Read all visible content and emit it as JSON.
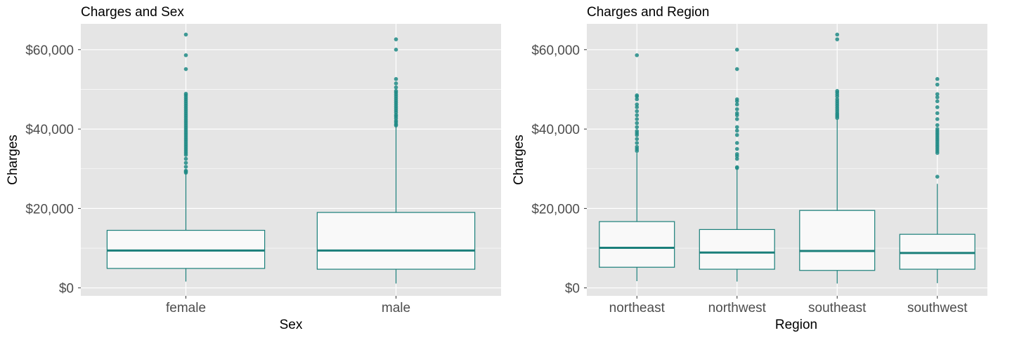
{
  "colors": {
    "panel_bg": "#e5e5e5",
    "grid": "#ffffff",
    "box_stroke": "#1a7f7a",
    "box_fill": "#f9f9f9",
    "outlier": "#1f8a85"
  },
  "chart_data": [
    {
      "type": "box",
      "title": "Charges and Sex",
      "xlabel": "Sex",
      "ylabel": "Charges",
      "ylim": [
        -2000,
        66500
      ],
      "yticks": [
        0,
        20000,
        40000,
        60000
      ],
      "ytick_labels": [
        "$0",
        "$20,000",
        "$40,000",
        "$60,000"
      ],
      "grid": true,
      "categories": [
        "female",
        "male"
      ],
      "boxes": [
        {
          "category": "female",
          "min": 1600,
          "q1": 4900,
          "median": 9400,
          "q3": 14500,
          "max": 28900,
          "outliers": [
            29000,
            29300,
            29500,
            30500,
            31500,
            32500,
            33500,
            34000,
            34500,
            35000,
            35500,
            36000,
            36500,
            37000,
            37500,
            38000,
            38500,
            39000,
            39500,
            40000,
            40500,
            41000,
            41500,
            42000,
            42500,
            43000,
            43500,
            44000,
            44500,
            45000,
            45500,
            46000,
            46500,
            47000,
            47500,
            48000,
            48500,
            48900,
            55100,
            58600,
            63800
          ]
        },
        {
          "category": "male",
          "min": 1100,
          "q1": 4700,
          "median": 9400,
          "q3": 19000,
          "max": 40700,
          "outliers": [
            40900,
            41200,
            41700,
            42100,
            42700,
            43200,
            43600,
            44200,
            44700,
            45200,
            45700,
            46200,
            46700,
            47200,
            47700,
            48200,
            48700,
            49200,
            49600,
            50500,
            51500,
            52600,
            60000,
            62600
          ]
        }
      ]
    },
    {
      "type": "box",
      "title": "Charges and Region",
      "xlabel": "Region",
      "ylabel": "Charges",
      "ylim": [
        -2000,
        66500
      ],
      "yticks": [
        0,
        20000,
        40000,
        60000
      ],
      "ytick_labels": [
        "$0",
        "$20,000",
        "$40,000",
        "$60,000"
      ],
      "grid": true,
      "categories": [
        "northeast",
        "northwest",
        "southeast",
        "southwest"
      ],
      "boxes": [
        {
          "category": "northeast",
          "min": 1700,
          "q1": 5200,
          "median": 10100,
          "q3": 16700,
          "max": 34000,
          "outliers": [
            34500,
            35000,
            35500,
            36500,
            37500,
            38500,
            39000,
            39500,
            40500,
            41500,
            42500,
            43500,
            44500,
            45500,
            46200,
            47500,
            48200,
            48500,
            58600
          ]
        },
        {
          "category": "northwest",
          "min": 1600,
          "q1": 4700,
          "median": 8900,
          "q3": 14700,
          "max": 30000,
          "outliers": [
            30200,
            30400,
            32500,
            33200,
            33700,
            35000,
            36500,
            38500,
            39600,
            40500,
            42500,
            43500,
            44000,
            45000,
            46200,
            47000,
            47500,
            55100,
            60000
          ]
        },
        {
          "category": "southeast",
          "min": 1100,
          "q1": 4400,
          "median": 9300,
          "q3": 19500,
          "max": 42500,
          "outliers": [
            42800,
            43200,
            43600,
            44000,
            44500,
            45000,
            45500,
            46000,
            46500,
            47000,
            47500,
            48200,
            48700,
            49200,
            49600,
            62600,
            63800
          ]
        },
        {
          "category": "southwest",
          "min": 1200,
          "q1": 4700,
          "median": 8800,
          "q3": 13500,
          "max": 26200,
          "outliers": [
            28000,
            34000,
            34500,
            35000,
            35500,
            36000,
            36500,
            37000,
            37500,
            38000,
            38500,
            39000,
            39500,
            40000,
            41000,
            42500,
            44000,
            45500,
            47000,
            48000,
            48800,
            51200,
            52600
          ]
        }
      ]
    }
  ]
}
